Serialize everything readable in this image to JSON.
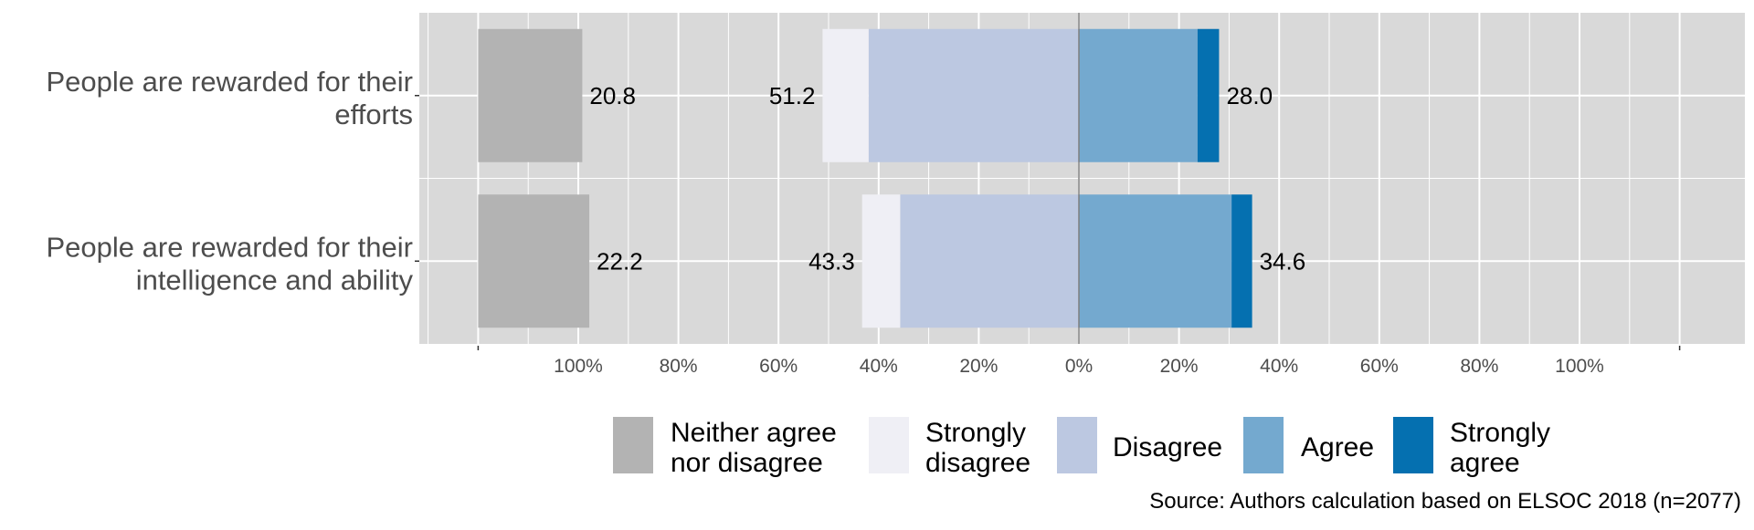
{
  "chart_data": {
    "type": "bar",
    "orientation": "horizontal",
    "stacked": true,
    "diverging": true,
    "categories": [
      [
        "People are rewarded for their",
        "efforts"
      ],
      [
        "People are rewarded for their",
        "intelligence and ability"
      ]
    ],
    "series": [
      {
        "name": "Neither agree nor disagree",
        "legend_lines": [
          "Neither agree",
          "nor disagree"
        ],
        "color": "#b3b3b3",
        "side": "neutral",
        "values": [
          20.8,
          22.2
        ]
      },
      {
        "name": "Strongly disagree",
        "legend_lines": [
          "Strongly",
          "disagree"
        ],
        "color": "#efeff5",
        "side": "negative",
        "values": [
          9.2,
          7.6
        ]
      },
      {
        "name": "Disagree",
        "legend_lines": [
          "Disagree"
        ],
        "color": "#bcc8e1",
        "side": "negative",
        "values": [
          42.0,
          35.7
        ]
      },
      {
        "name": "Agree",
        "legend_lines": [
          "Agree"
        ],
        "color": "#74a9cf",
        "side": "positive",
        "values": [
          23.7,
          30.5
        ]
      },
      {
        "name": "Strongly agree",
        "legend_lines": [
          "Strongly",
          "agree"
        ],
        "color": "#0570b0",
        "side": "positive",
        "values": [
          4.3,
          4.1
        ]
      }
    ],
    "labels": {
      "neutral": [
        "20.8",
        "22.2"
      ],
      "negative_total": [
        "51.2",
        "43.3"
      ],
      "positive_total": [
        "28.0",
        "34.6"
      ]
    },
    "x_ticks": [
      -100,
      -80,
      -60,
      -40,
      -20,
      0,
      20,
      40,
      60,
      80,
      100
    ],
    "x_tick_labels": [
      "100%",
      "80%",
      "60%",
      "40%",
      "20%",
      "0%",
      "20%",
      "40%",
      "60%",
      "80%",
      "100%"
    ],
    "xlim": [
      -132,
      120
    ],
    "neutral_bar_origin": -120,
    "legend_position": "bottom",
    "grid": true,
    "caption": "Source: Authors calculation based on ELSOC 2018 (n=2077)"
  }
}
